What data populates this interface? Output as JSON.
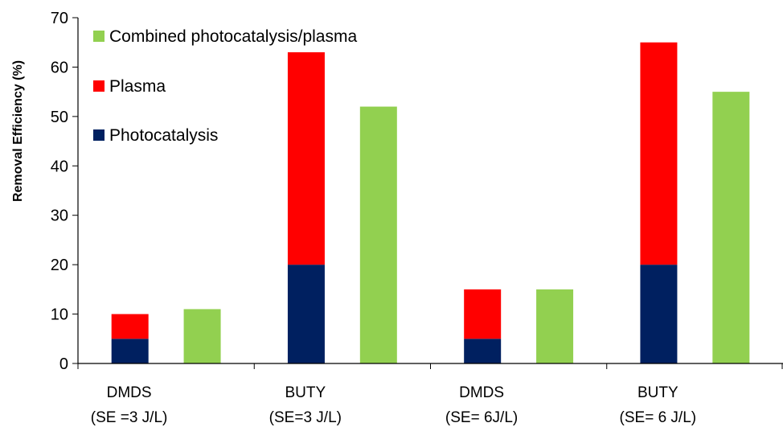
{
  "chart_data": {
    "type": "bar",
    "stacked": true,
    "ylabel": "Removal  Efficiency  (%)",
    "xlabel": "",
    "ylim": [
      0,
      70
    ],
    "yticks": [
      0,
      10,
      20,
      30,
      40,
      50,
      60,
      70
    ],
    "grid": false,
    "legend_position": "top-left",
    "categories": [
      {
        "line1": "DMDS",
        "line2": "(SE =3 J/L)"
      },
      {
        "line1": "BUTY",
        "line2": "(SE=3 J/L)"
      },
      {
        "line1": "DMDS",
        "line2": "(SE= 6J/L)"
      },
      {
        "line1": "BUTY",
        "line2": "(SE= 6 J/L)"
      }
    ],
    "series": [
      {
        "name": "Photocatalysis",
        "color": "#002060",
        "stack": "separate",
        "values": [
          5,
          20,
          5,
          20
        ]
      },
      {
        "name": "Plasma",
        "color": "#ff0000",
        "stack": "separate",
        "values": [
          5,
          43,
          10,
          45
        ]
      },
      {
        "name": "Combined photocatalysis/plasma",
        "color": "#92d050",
        "stack": "combined",
        "values": [
          11,
          52,
          15,
          55
        ]
      }
    ],
    "legend_order": [
      "Combined photocatalysis/plasma",
      "Plasma",
      "Photocatalysis"
    ]
  }
}
